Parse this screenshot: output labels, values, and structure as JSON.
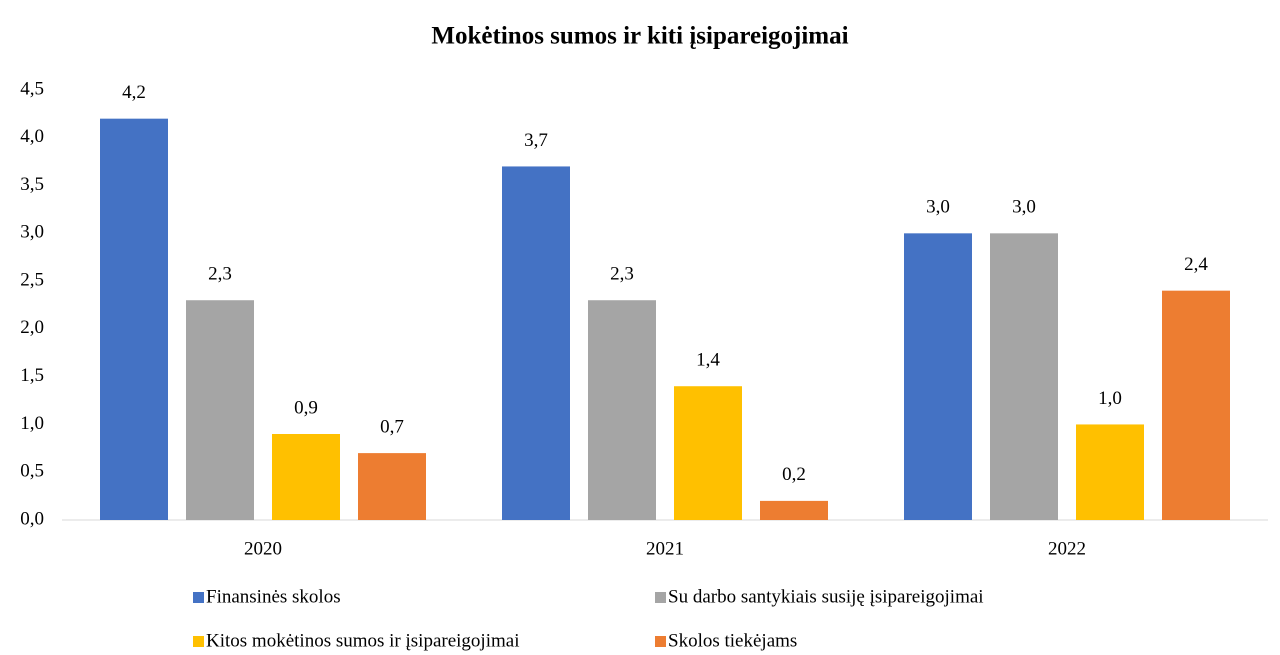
{
  "chart_data": {
    "type": "bar",
    "title": "Mokėtinos sumos ir kiti įsipareigojimai",
    "categories": [
      "2020",
      "2021",
      "2022"
    ],
    "series": [
      {
        "name": "Finansinės skolos",
        "color": "#4472c4",
        "values": [
          4.2,
          3.7,
          3.0
        ],
        "value_labels": [
          "4,2",
          "3,7",
          "3,0"
        ]
      },
      {
        "name": "Su darbo santykiais susiję įsipareigojimai",
        "color": "#a5a5a5",
        "values": [
          2.3,
          2.3,
          3.0
        ],
        "value_labels": [
          "2,3",
          "2,3",
          "3,0"
        ]
      },
      {
        "name": "Kitos mokėtinos sumos ir įsipareigojimai",
        "color": "#ffc000",
        "values": [
          0.9,
          1.4,
          1.0
        ],
        "value_labels": [
          "0,9",
          "1,4",
          "1,0"
        ]
      },
      {
        "name": "Skolos tiekėjams",
        "color": "#ed7d31",
        "values": [
          0.7,
          0.2,
          2.4
        ],
        "value_labels": [
          "0,7",
          "0,2",
          "2,4"
        ]
      }
    ],
    "ylim": [
      0,
      4.5
    ],
    "yticks": [
      {
        "value": 0,
        "label": "0,0"
      },
      {
        "value": 0.5,
        "label": "0,5"
      },
      {
        "value": 1,
        "label": "1,0"
      },
      {
        "value": 1.5,
        "label": "1,5"
      },
      {
        "value": 2,
        "label": "2,0"
      },
      {
        "value": 2.5,
        "label": "2,5"
      },
      {
        "value": 3,
        "label": "3,0"
      },
      {
        "value": 3.5,
        "label": "3,5"
      },
      {
        "value": 4,
        "label": "4,0"
      },
      {
        "value": 4.5,
        "label": "4,5"
      }
    ],
    "grid": false
  }
}
